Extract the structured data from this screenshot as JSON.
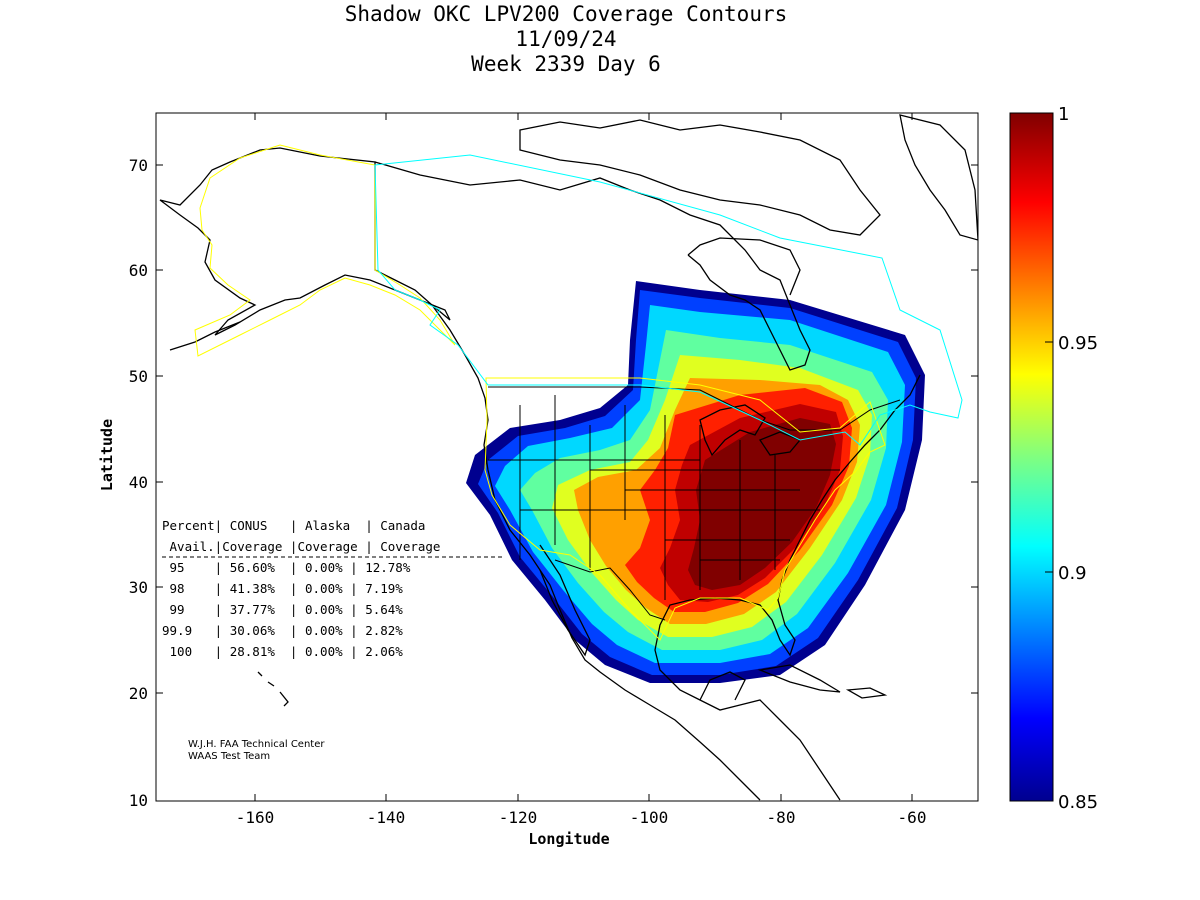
{
  "title": {
    "line1": "Shadow OKC LPV200 Coverage Contours",
    "line2": "11/09/24",
    "line3": "Week 2339 Day 6"
  },
  "axes": {
    "xlabel": "Longitude",
    "ylabel": "Latitude",
    "xticks": [
      "-160",
      "-140",
      "-120",
      "-100",
      "-80",
      "-60"
    ],
    "yticks": [
      "70",
      "60",
      "50",
      "40",
      "30",
      "20",
      "10"
    ],
    "xlim": [
      -175,
      -50
    ],
    "ylim": [
      10,
      75
    ]
  },
  "colorbar": {
    "ticks": [
      "1",
      "0.95",
      "0.9",
      "0.85"
    ],
    "range": [
      0.85,
      1.0
    ],
    "colormap": "jet"
  },
  "table": {
    "header1": "Percent| CONUS   | Alaska  | Canada",
    "header2": " Avail.|Coverage |Coverage | Coverage",
    "rows": [
      " 95    | 56.60%  | 0.00% | 12.78%",
      " 98    | 41.38%  | 0.00% | 7.19%",
      " 99    | 37.77%  | 0.00% | 5.64%",
      "99.9   | 30.06%  | 0.00% | 2.82%",
      " 100   | 28.81%  | 0.00% | 2.06%"
    ]
  },
  "credits": {
    "line1": "W.J.H. FAA Technical Center",
    "line2": "WAAS Test Team"
  },
  "colors": {
    "alaska_boundary": "#ffff00",
    "canada_boundary": "#00ffff",
    "conus_boundary": "#ffff00"
  }
}
